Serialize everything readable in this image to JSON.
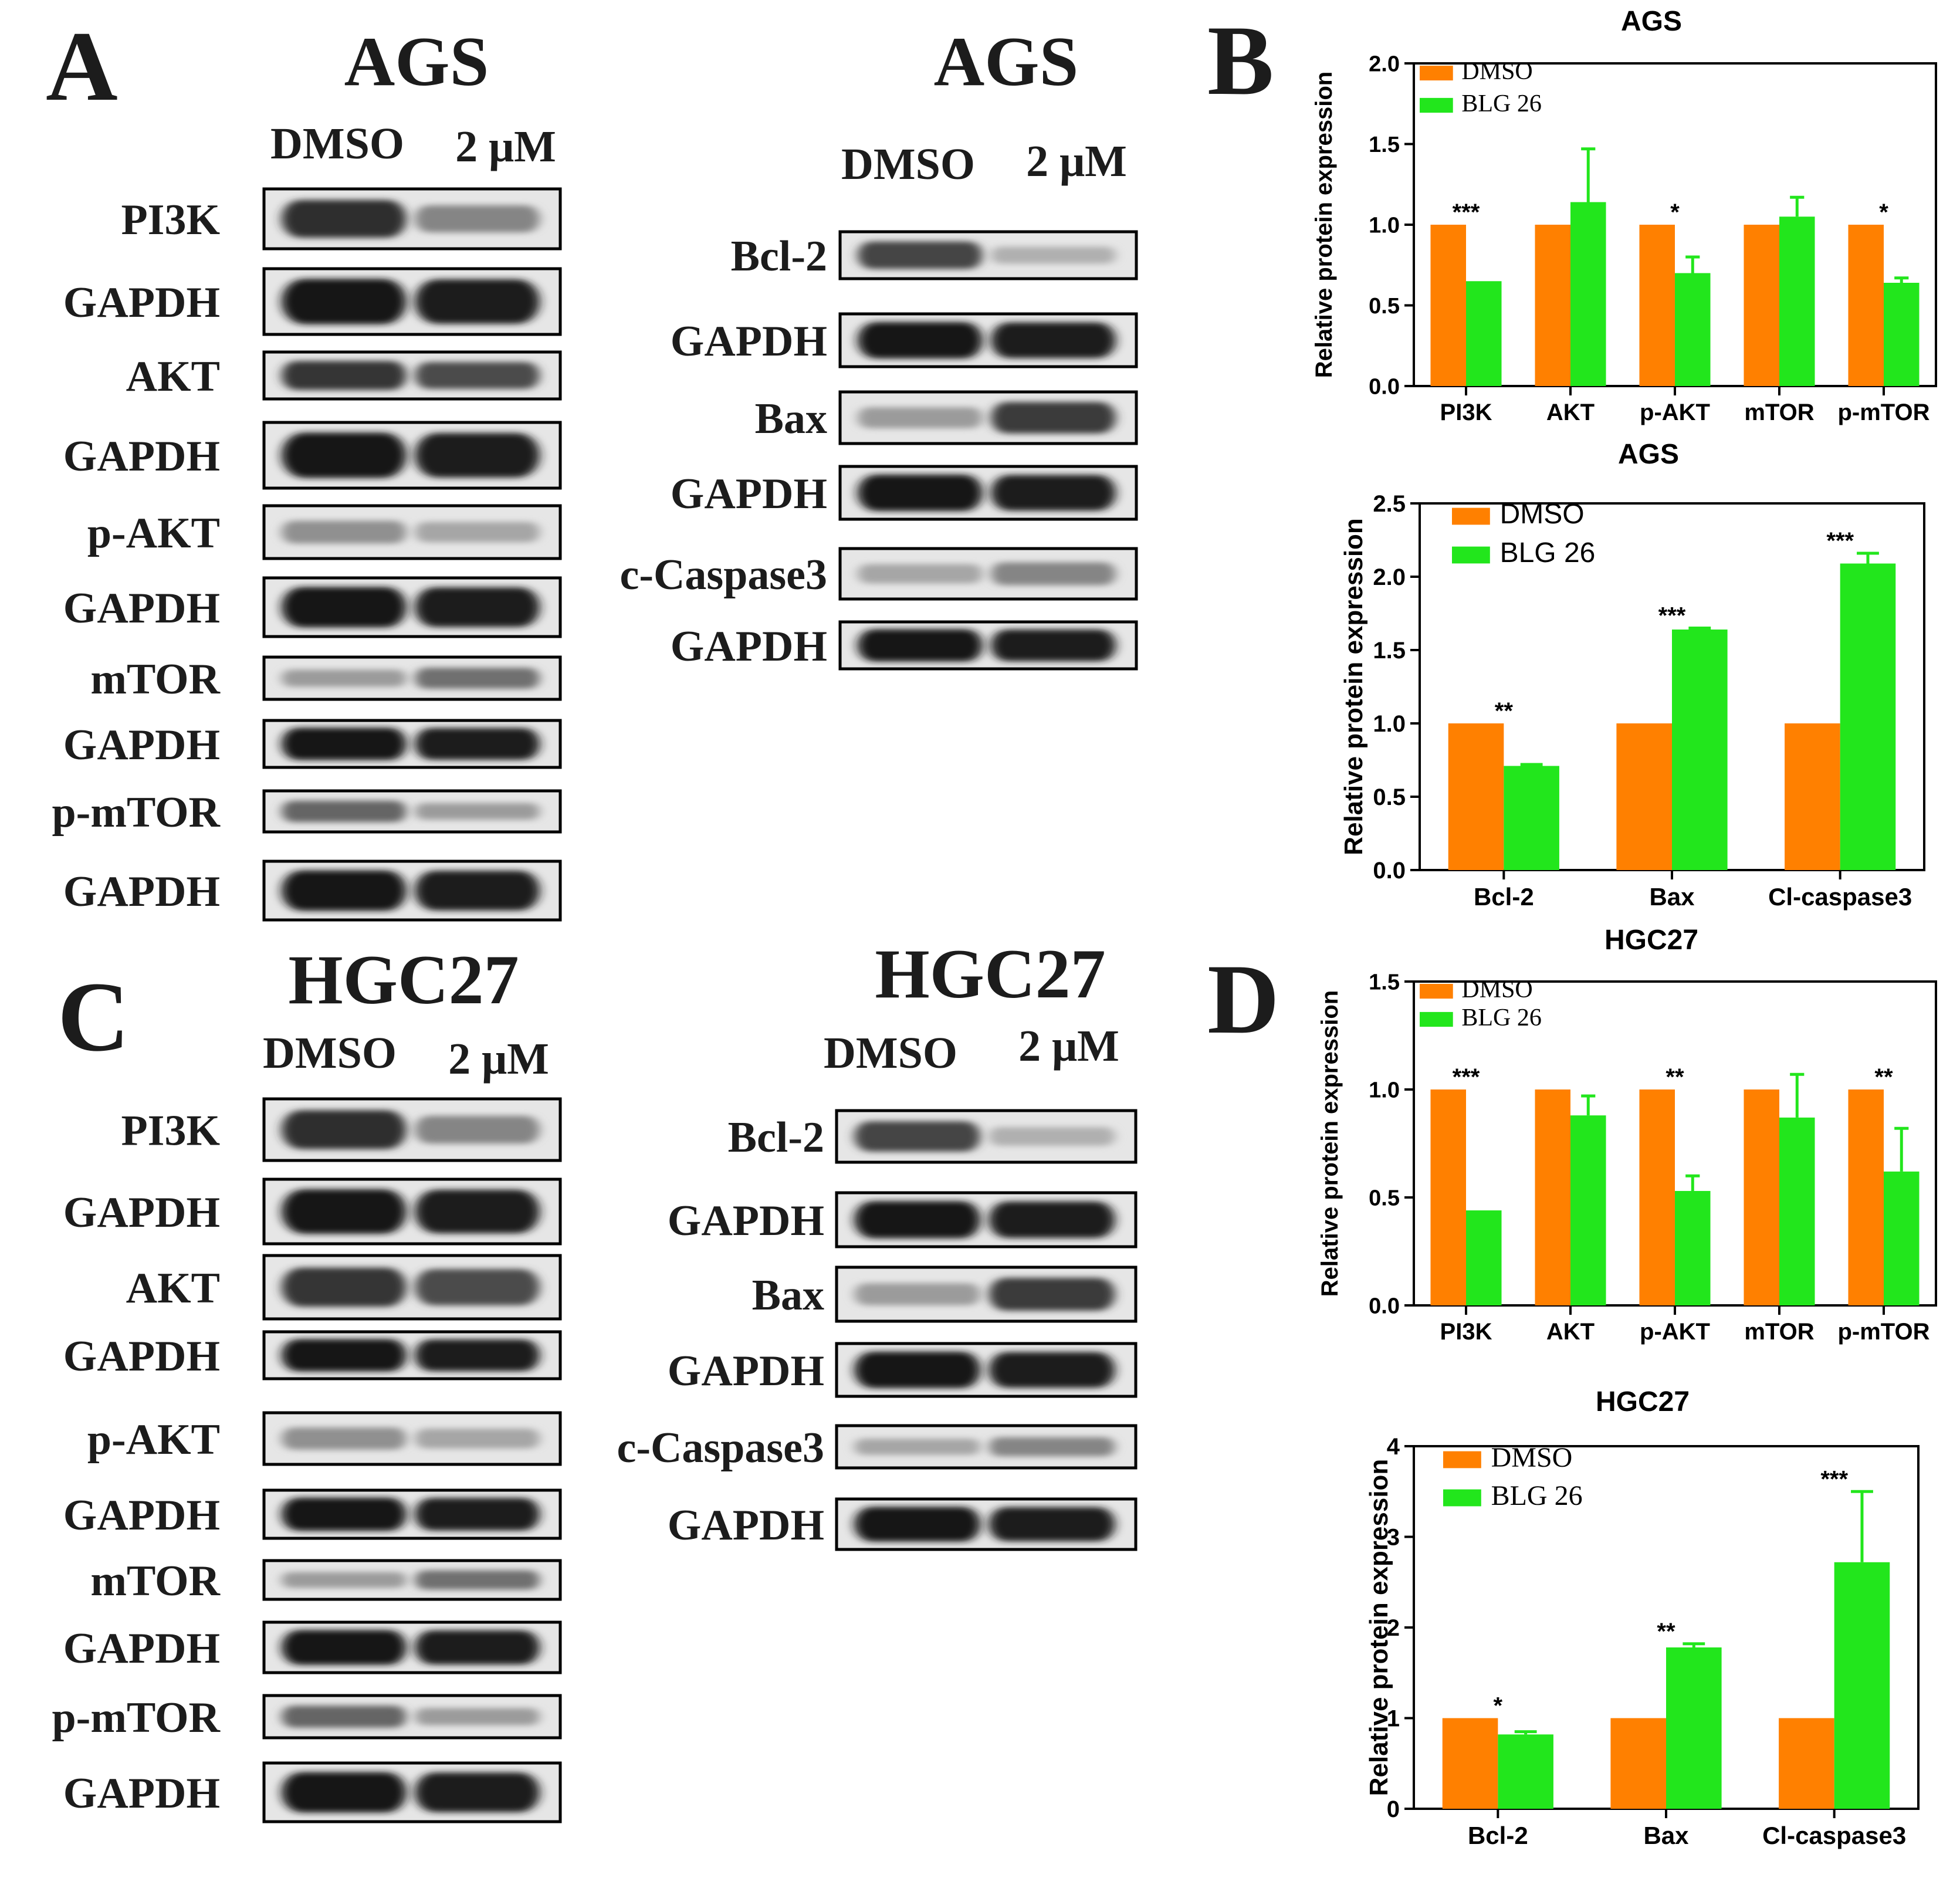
{
  "panel_letters": {
    "a": "A",
    "b": "B",
    "c": "C",
    "d": "D"
  },
  "blots": {
    "a_left": {
      "title": "AGS",
      "lanes": [
        "DMSO",
        "2 μM"
      ],
      "rows": [
        "PI3K",
        "GAPDH",
        "AKT",
        "GAPDH",
        "p-AKT",
        "GAPDH",
        "mTOR",
        "GAPDH",
        "p-mTOR",
        "GAPDH"
      ]
    },
    "a_right": {
      "title": "AGS",
      "lanes": [
        "DMSO",
        "2 μM"
      ],
      "rows": [
        "Bcl-2",
        "GAPDH",
        "Bax",
        "GAPDH",
        "c-Caspase3",
        "GAPDH"
      ]
    },
    "c_left": {
      "title": "HGC27",
      "lanes": [
        "DMSO",
        "2 μM"
      ],
      "rows": [
        "PI3K",
        "GAPDH",
        "AKT",
        "GAPDH",
        "p-AKT",
        "GAPDH",
        "mTOR",
        "GAPDH",
        "p-mTOR",
        "GAPDH"
      ]
    },
    "c_right": {
      "title": "HGC27",
      "lanes": [
        "DMSO",
        "2 μM"
      ],
      "rows": [
        "Bcl-2",
        "GAPDH",
        "Bax",
        "GAPDH",
        "c-Caspase3",
        "GAPDH"
      ]
    }
  },
  "colors": {
    "dmso": "#FF8000",
    "blg26": "#22E61C"
  },
  "chart_data": [
    {
      "type": "bar",
      "title": "AGS",
      "ylabel": "Relative protein expression",
      "categories": [
        "PI3K",
        "AKT",
        "p-AKT",
        "mTOR",
        "p-mTOR"
      ],
      "ylim": [
        0,
        2.0
      ],
      "yticks": [
        "0.0",
        "0.5",
        "1.0",
        "1.5",
        "2.0"
      ],
      "legend": "top-left",
      "series": [
        {
          "name": "DMSO",
          "values": [
            1.0,
            1.0,
            1.0,
            1.0,
            1.0
          ]
        },
        {
          "name": "BLG 26",
          "values": [
            0.65,
            1.14,
            0.7,
            1.05,
            0.64
          ],
          "errors": [
            0,
            0.33,
            0.1,
            0.12,
            0.03
          ]
        }
      ],
      "significance": [
        "***",
        "",
        "*",
        "",
        "*"
      ]
    },
    {
      "type": "bar",
      "title": "AGS",
      "ylabel": "Relative protein expression",
      "categories": [
        "Bcl-2",
        "Bax",
        "Cl-caspase3"
      ],
      "ylim": [
        0,
        2.5
      ],
      "yticks": [
        "0.0",
        "0.5",
        "1.0",
        "1.5",
        "2.0",
        "2.5"
      ],
      "legend": "top-left",
      "series": [
        {
          "name": "DMSO",
          "values": [
            1.0,
            1.0,
            1.0
          ]
        },
        {
          "name": "BLG 26",
          "values": [
            0.71,
            1.64,
            2.09
          ],
          "errors": [
            0.01,
            0.01,
            0.07
          ]
        }
      ],
      "significance": [
        "**",
        "***",
        "***"
      ]
    },
    {
      "type": "bar",
      "title": "HGC27",
      "ylabel": "Relative protein expression",
      "categories": [
        "PI3K",
        "AKT",
        "p-AKT",
        "mTOR",
        "p-mTOR"
      ],
      "ylim": [
        0,
        1.5
      ],
      "yticks": [
        "0.0",
        "0.5",
        "1.0",
        "1.5"
      ],
      "legend": "top-left",
      "series": [
        {
          "name": "DMSO",
          "values": [
            1.0,
            1.0,
            1.0,
            1.0,
            1.0
          ]
        },
        {
          "name": "BLG 26",
          "values": [
            0.44,
            0.88,
            0.53,
            0.87,
            0.62
          ],
          "errors": [
            0,
            0.09,
            0.07,
            0.2,
            0.2
          ]
        }
      ],
      "significance": [
        "***",
        "",
        "**",
        "",
        "**"
      ]
    },
    {
      "type": "bar",
      "title": "HGC27",
      "ylabel": "Relative protein expression",
      "categories": [
        "Bcl-2",
        "Bax",
        "Cl-caspase3"
      ],
      "ylim": [
        0,
        4
      ],
      "yticks": [
        "0",
        "1",
        "2",
        "3",
        "4"
      ],
      "legend": "top-left",
      "series": [
        {
          "name": "DMSO",
          "values": [
            1.0,
            1.0,
            1.0
          ]
        },
        {
          "name": "BLG 26",
          "values": [
            0.82,
            1.78,
            2.72
          ],
          "errors": [
            0.03,
            0.04,
            0.78
          ]
        }
      ],
      "significance": [
        "*",
        "**",
        "***"
      ]
    }
  ]
}
